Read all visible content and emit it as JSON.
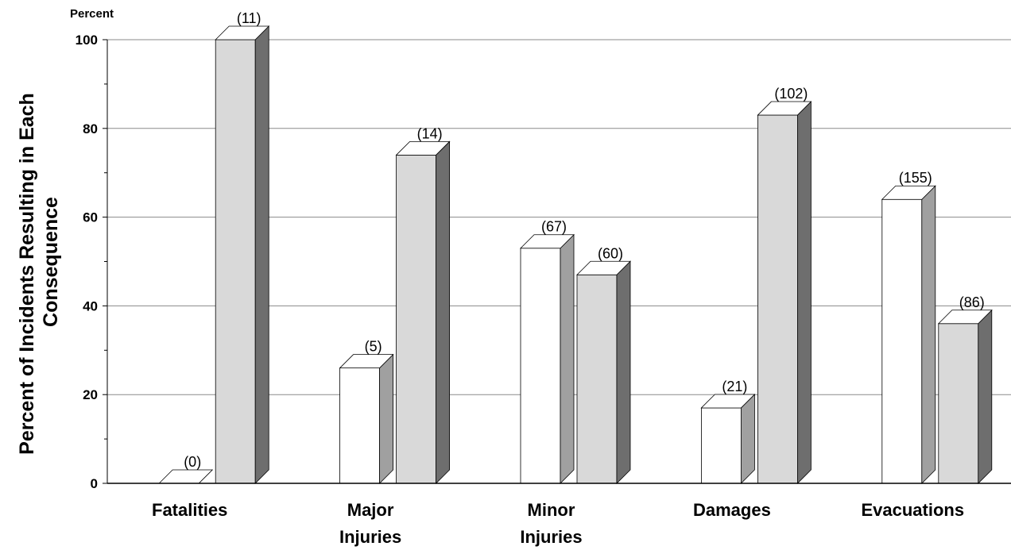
{
  "chart_data": {
    "type": "bar",
    "unit_label": "Percent",
    "ylabel_lines": [
      "Percent of Incidents Resulting in Each",
      "Consequence"
    ],
    "xlabel": "",
    "ylim": [
      0,
      100
    ],
    "yticks": [
      "0",
      "20",
      "40",
      "60",
      "80",
      "100"
    ],
    "grid": true,
    "categories": [
      [
        "Fatalities"
      ],
      [
        "Major",
        "Injuries"
      ],
      [
        "Minor",
        "Injuries"
      ],
      [
        "Damages"
      ],
      [
        "Evacuations"
      ]
    ],
    "series": [
      {
        "values": [
          0,
          26,
          53,
          17,
          64
        ],
        "labels": [
          "(0)",
          "(5)",
          "(67)",
          "(21)",
          "(155)"
        ],
        "colors": {
          "front": "#ffffff",
          "side": "#a0a0a0",
          "top": "#ffffff"
        }
      },
      {
        "values": [
          100,
          74,
          47,
          83,
          36
        ],
        "labels": [
          "(11)",
          "(14)",
          "(60)",
          "(102)",
          "(86)"
        ],
        "colors": {
          "front": "#d9d9d9",
          "side": "#6e6e6e",
          "top": "#ffffff"
        }
      }
    ]
  }
}
